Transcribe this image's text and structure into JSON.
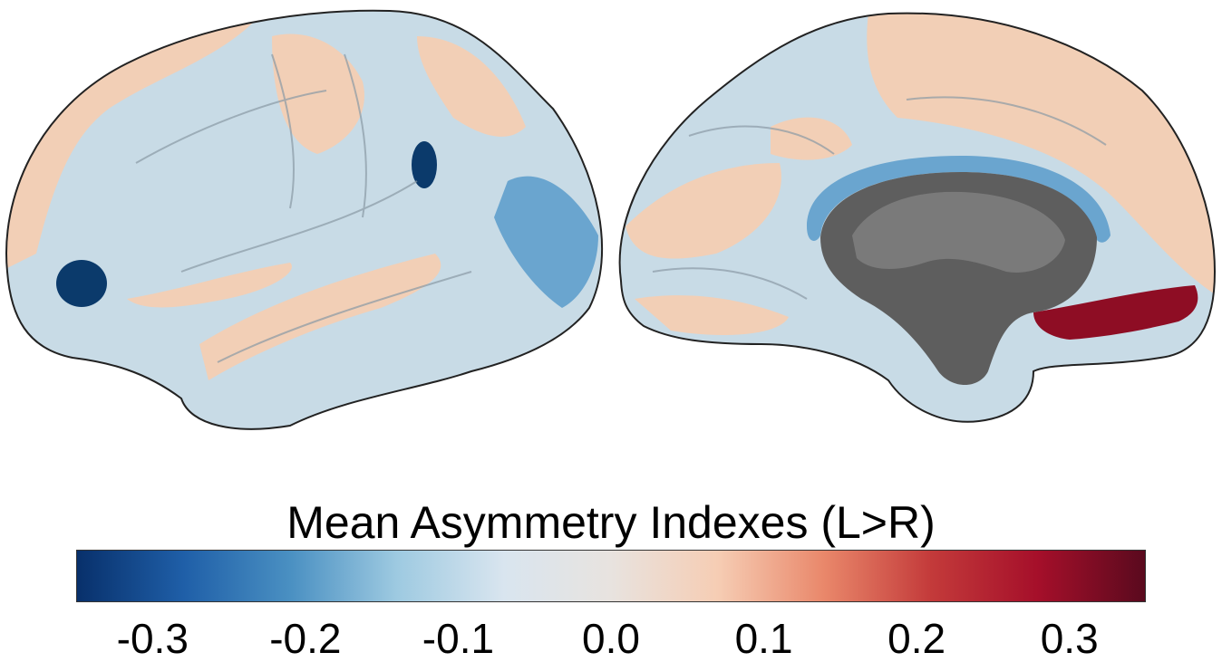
{
  "figure": {
    "colorbar": {
      "title": "Mean Asymmetry Indexes (L>R)",
      "min": -0.35,
      "max": 0.35,
      "ticks": [
        {
          "value": -0.3,
          "label": "-0.3"
        },
        {
          "value": -0.2,
          "label": "-0.2"
        },
        {
          "value": -0.1,
          "label": "-0.1"
        },
        {
          "value": 0.0,
          "label": "0.0"
        },
        {
          "value": 0.1,
          "label": "0.1"
        },
        {
          "value": 0.2,
          "label": "0.2"
        },
        {
          "value": 0.3,
          "label": "0.3"
        }
      ],
      "colors": [
        "#08306b",
        "#1f5fa8",
        "#4a90c2",
        "#9ecae1",
        "#d9e5ef",
        "#e8e3df",
        "#f6cdb4",
        "#e9876a",
        "#c33a3a",
        "#a50f2a",
        "#5a0a1e"
      ]
    },
    "surface_colors": {
      "base": "#c8dbe6",
      "positive_light": "#f2cfb6",
      "negative_light": "#b9d5e6",
      "negative_medium": "#6aa5cf",
      "negative_strong": "#0b3a6b",
      "positive_strong": "#8e0d24",
      "medial_wall": "#5e5e5e",
      "outline": "#222222"
    }
  }
}
